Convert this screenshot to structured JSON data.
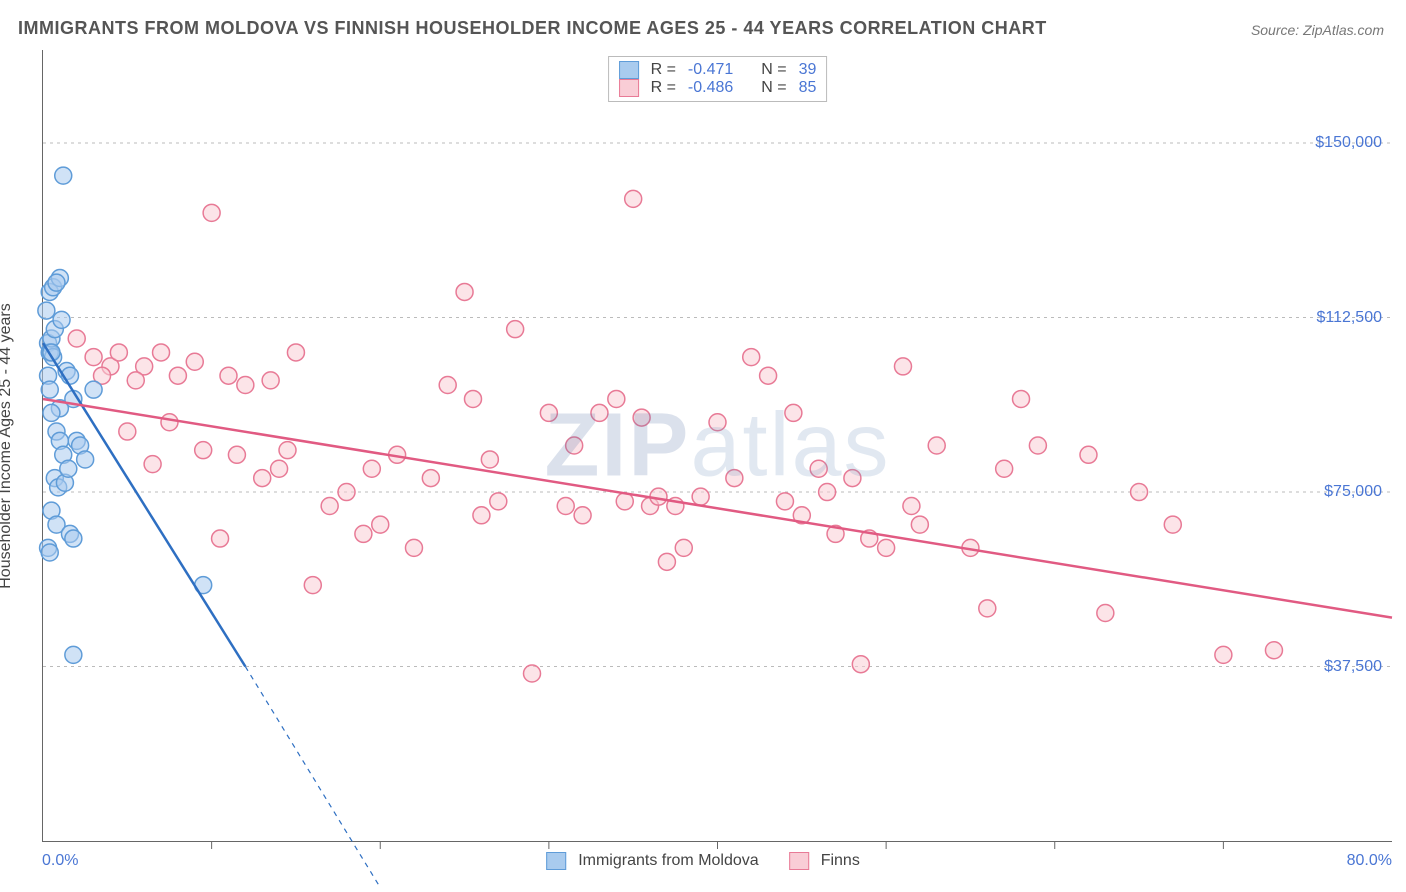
{
  "title": "IMMIGRANTS FROM MOLDOVA VS FINNISH HOUSEHOLDER INCOME AGES 25 - 44 YEARS CORRELATION CHART",
  "source": "Source: ZipAtlas.com",
  "watermark": {
    "part1": "ZIP",
    "part2": "atlas"
  },
  "chart": {
    "type": "scatter",
    "ylabel": "Householder Income Ages 25 - 44 years",
    "xlim": [
      0,
      80
    ],
    "ylim": [
      0,
      170000
    ],
    "xaxis_min_label": "0.0%",
    "xaxis_max_label": "80.0%",
    "ytick_values": [
      37500,
      75000,
      112500,
      150000
    ],
    "ytick_labels": [
      "$37,500",
      "$75,000",
      "$112,500",
      "$150,000"
    ],
    "xtick_values": [
      10,
      20,
      30,
      40,
      50,
      60,
      70
    ],
    "background_color": "#ffffff",
    "grid_color": "#bbbbbb",
    "marker_radius": 8.5,
    "marker_stroke_width": 1.5,
    "line_width": 2.5,
    "series": [
      {
        "id": "moldova",
        "label": "Immigrants from Moldova",
        "fill_color": "#a9cbee",
        "stroke_color": "#5f9cd8",
        "line_color": "#2e6fc2",
        "R": "-0.471",
        "N": "39",
        "trend": {
          "x1": 0,
          "y1": 107000,
          "x2": 12,
          "y2": 37500,
          "extend_x2": 20,
          "extend_y2": -10000
        },
        "points": [
          [
            0.3,
            107000
          ],
          [
            0.4,
            105000
          ],
          [
            0.5,
            108000
          ],
          [
            0.6,
            104000
          ],
          [
            0.7,
            110000
          ],
          [
            0.4,
            118000
          ],
          [
            0.6,
            119000
          ],
          [
            0.2,
            114000
          ],
          [
            1.0,
            121000
          ],
          [
            0.8,
            120000
          ],
          [
            1.2,
            143000
          ],
          [
            1.4,
            101000
          ],
          [
            1.6,
            100000
          ],
          [
            1.8,
            95000
          ],
          [
            1.0,
            93000
          ],
          [
            0.5,
            92000
          ],
          [
            0.8,
            88000
          ],
          [
            1.0,
            86000
          ],
          [
            1.2,
            83000
          ],
          [
            2.0,
            86000
          ],
          [
            2.2,
            85000
          ],
          [
            0.7,
            78000
          ],
          [
            0.9,
            76000
          ],
          [
            1.3,
            77000
          ],
          [
            0.5,
            71000
          ],
          [
            0.8,
            68000
          ],
          [
            1.6,
            66000
          ],
          [
            1.8,
            65000
          ],
          [
            0.3,
            63000
          ],
          [
            0.4,
            62000
          ],
          [
            0.5,
            105000
          ],
          [
            0.3,
            100000
          ],
          [
            1.8,
            40000
          ],
          [
            1.1,
            112000
          ],
          [
            0.4,
            97000
          ],
          [
            1.5,
            80000
          ],
          [
            2.5,
            82000
          ],
          [
            3.0,
            97000
          ],
          [
            9.5,
            55000
          ]
        ]
      },
      {
        "id": "finns",
        "label": "Finns",
        "fill_color": "#f9cdd6",
        "stroke_color": "#e87a96",
        "line_color": "#e15a82",
        "R": "-0.486",
        "N": "85",
        "trend": {
          "x1": 0,
          "y1": 95000,
          "x2": 80,
          "y2": 48000
        },
        "points": [
          [
            2,
            108000
          ],
          [
            3,
            104000
          ],
          [
            4,
            102000
          ],
          [
            3.5,
            100000
          ],
          [
            4.5,
            105000
          ],
          [
            5,
            88000
          ],
          [
            6,
            102000
          ],
          [
            7,
            105000
          ],
          [
            8,
            100000
          ],
          [
            9,
            103000
          ],
          [
            10,
            135000
          ],
          [
            11,
            100000
          ],
          [
            12,
            98000
          ],
          [
            13,
            78000
          ],
          [
            14,
            80000
          ],
          [
            15,
            105000
          ],
          [
            16,
            55000
          ],
          [
            17,
            72000
          ],
          [
            18,
            75000
          ],
          [
            19,
            66000
          ],
          [
            20,
            68000
          ],
          [
            21,
            83000
          ],
          [
            22,
            63000
          ],
          [
            23,
            78000
          ],
          [
            24,
            98000
          ],
          [
            25,
            118000
          ],
          [
            26,
            70000
          ],
          [
            27,
            73000
          ],
          [
            28,
            110000
          ],
          [
            29,
            36000
          ],
          [
            30,
            92000
          ],
          [
            31,
            72000
          ],
          [
            32,
            70000
          ],
          [
            33,
            92000
          ],
          [
            34,
            95000
          ],
          [
            35,
            138000
          ],
          [
            35.5,
            91000
          ],
          [
            36,
            72000
          ],
          [
            36.5,
            74000
          ],
          [
            37,
            60000
          ],
          [
            38,
            63000
          ],
          [
            39,
            74000
          ],
          [
            40,
            90000
          ],
          [
            41,
            78000
          ],
          [
            42,
            104000
          ],
          [
            43,
            100000
          ],
          [
            44,
            73000
          ],
          [
            45,
            70000
          ],
          [
            46,
            80000
          ],
          [
            47,
            66000
          ],
          [
            48,
            78000
          ],
          [
            48.5,
            38000
          ],
          [
            49,
            65000
          ],
          [
            50,
            63000
          ],
          [
            51,
            102000
          ],
          [
            51.5,
            72000
          ],
          [
            52,
            68000
          ],
          [
            53,
            85000
          ],
          [
            55,
            63000
          ],
          [
            56,
            50000
          ],
          [
            57,
            80000
          ],
          [
            58,
            95000
          ],
          [
            59,
            85000
          ],
          [
            62,
            83000
          ],
          [
            63,
            49000
          ],
          [
            65,
            75000
          ],
          [
            67,
            68000
          ],
          [
            70,
            40000
          ],
          [
            73,
            41000
          ],
          [
            5.5,
            99000
          ],
          [
            6.5,
            81000
          ],
          [
            7.5,
            90000
          ],
          [
            9.5,
            84000
          ],
          [
            10.5,
            65000
          ],
          [
            11.5,
            83000
          ],
          [
            13.5,
            99000
          ],
          [
            14.5,
            84000
          ],
          [
            19.5,
            80000
          ],
          [
            25.5,
            95000
          ],
          [
            26.5,
            82000
          ],
          [
            31.5,
            85000
          ],
          [
            34.5,
            73000
          ],
          [
            37.5,
            72000
          ],
          [
            44.5,
            92000
          ],
          [
            46.5,
            75000
          ]
        ]
      }
    ],
    "legend_top": {
      "r_label": "R =",
      "n_label": "N ="
    },
    "legend_bottom": [
      {
        "series": "moldova"
      },
      {
        "series": "finns"
      }
    ]
  },
  "colors": {
    "title_text": "#555555",
    "source_text": "#777777",
    "axis_text": "#4a76d4",
    "label_text": "#444444"
  },
  "fontsize": {
    "title": 18,
    "source": 14,
    "tick": 16,
    "label": 16,
    "legend": 16,
    "watermark": 90
  }
}
